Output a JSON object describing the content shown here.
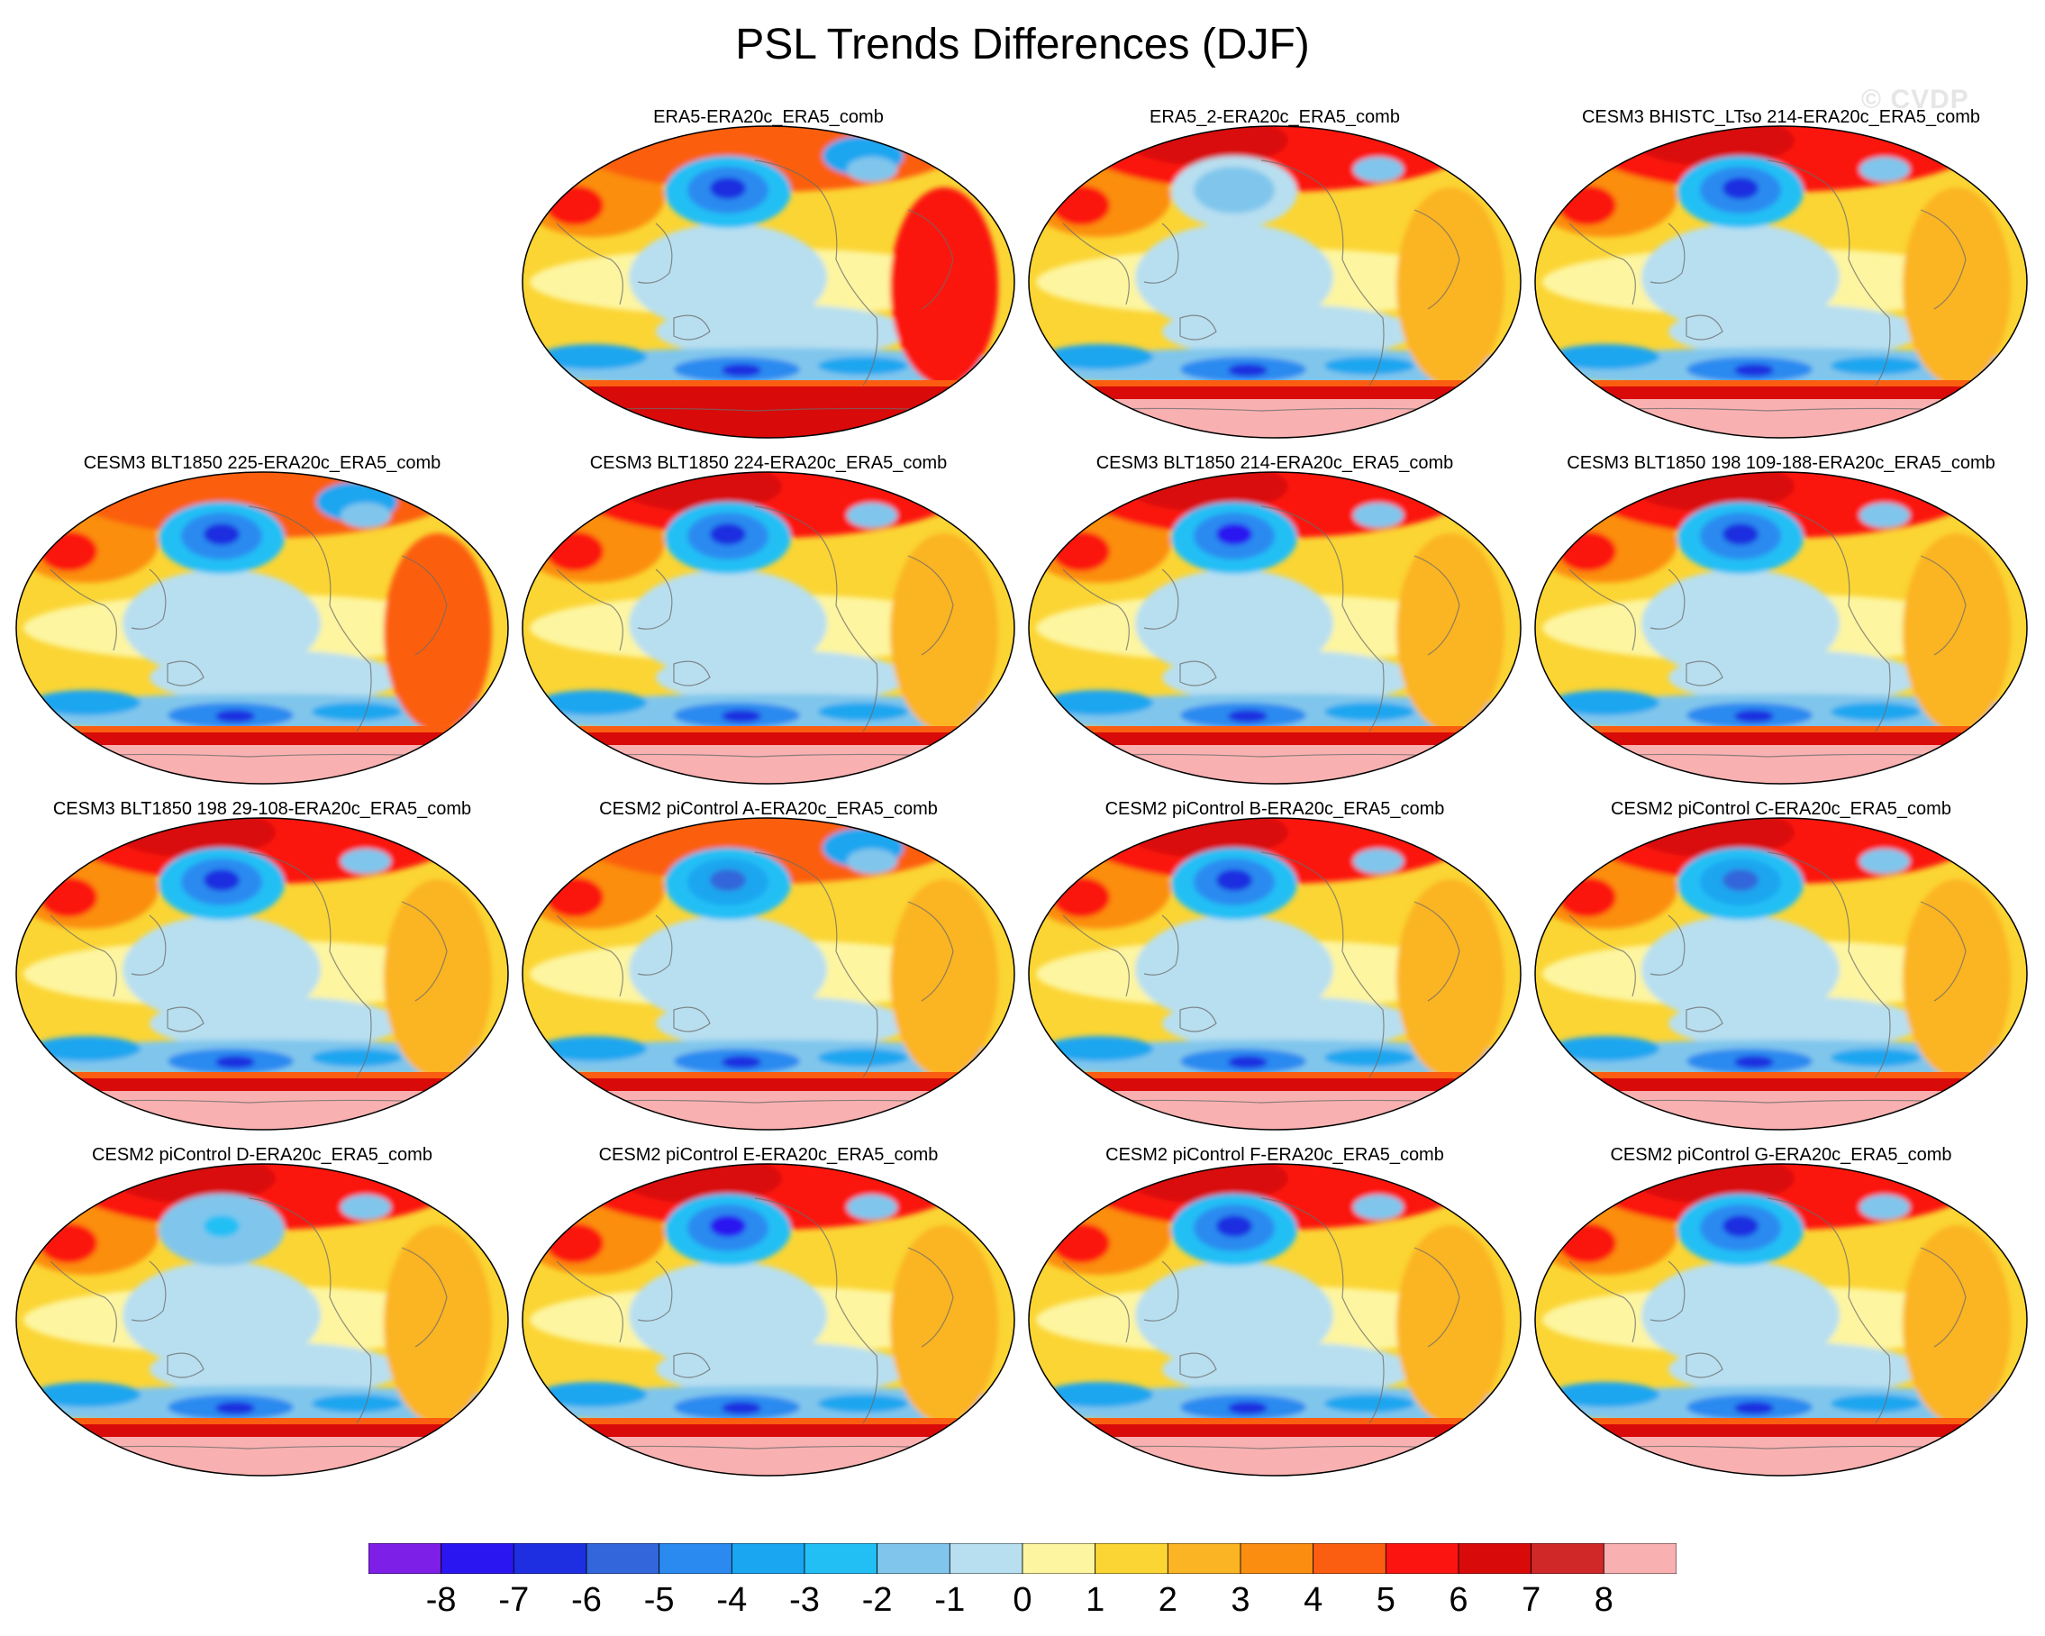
{
  "figure": {
    "title": "PSL Trends Differences (DJF)",
    "watermark": "© CVDP"
  },
  "panels": [
    {
      "title": "ERA5-ERA20c_ERA5_comb",
      "row": 0,
      "col": 1,
      "npole": "mixed",
      "nhlow": -6,
      "spole": "dark",
      "atlantic": 5
    },
    {
      "title": "ERA5_2-ERA20c_ERA5_comb",
      "row": 0,
      "col": 2,
      "npole": "high",
      "nhlow": -1,
      "spole": "pink",
      "atlantic": 2
    },
    {
      "title": "CESM3 BHISTC_LTso 214-ERA20c_ERA5_comb",
      "row": 0,
      "col": 3,
      "npole": "high",
      "nhlow": -6,
      "spole": "pink",
      "atlantic": 2
    },
    {
      "title": "CESM3 BLT1850 225-ERA20c_ERA5_comb",
      "row": 1,
      "col": 0,
      "npole": "mixed",
      "nhlow": -6,
      "spole": "pink",
      "atlantic": 4
    },
    {
      "title": "CESM3 BLT1850 224-ERA20c_ERA5_comb",
      "row": 1,
      "col": 1,
      "npole": "high",
      "nhlow": -6,
      "spole": "pink",
      "atlantic": 2
    },
    {
      "title": "CESM3 BLT1850 214-ERA20c_ERA5_comb",
      "row": 1,
      "col": 2,
      "npole": "high",
      "nhlow": -7,
      "spole": "pink",
      "atlantic": 2
    },
    {
      "title": "CESM3 BLT1850 198 109-188-ERA20c_ERA5_comb",
      "row": 1,
      "col": 3,
      "npole": "high",
      "nhlow": -6,
      "spole": "pink",
      "atlantic": 2
    },
    {
      "title": "CESM3 BLT1850 198 29-108-ERA20c_ERA5_comb",
      "row": 2,
      "col": 0,
      "npole": "high",
      "nhlow": -6,
      "spole": "pink",
      "atlantic": 2
    },
    {
      "title": "CESM2 piControl A-ERA20c_ERA5_comb",
      "row": 2,
      "col": 1,
      "npole": "mixed",
      "nhlow": -5,
      "spole": "pink",
      "atlantic": 2
    },
    {
      "title": "CESM2 piControl B-ERA20c_ERA5_comb",
      "row": 2,
      "col": 2,
      "npole": "high",
      "nhlow": -6,
      "spole": "pink",
      "atlantic": 2
    },
    {
      "title": "CESM2 piControl C-ERA20c_ERA5_comb",
      "row": 2,
      "col": 3,
      "npole": "high",
      "nhlow": -5,
      "spole": "pink",
      "atlantic": 2
    },
    {
      "title": "CESM2 piControl D-ERA20c_ERA5_comb",
      "row": 3,
      "col": 0,
      "npole": "high",
      "nhlow": -2,
      "spole": "pink",
      "atlantic": 2
    },
    {
      "title": "CESM2 piControl E-ERA20c_ERA5_comb",
      "row": 3,
      "col": 1,
      "npole": "high",
      "nhlow": -7,
      "spole": "pink",
      "atlantic": 2
    },
    {
      "title": "CESM2 piControl F-ERA20c_ERA5_comb",
      "row": 3,
      "col": 2,
      "npole": "high",
      "nhlow": -6,
      "spole": "pink",
      "atlantic": 2
    },
    {
      "title": "CESM2 piControl G-ERA20c_ERA5_comb",
      "row": 3,
      "col": 3,
      "npole": "high",
      "nhlow": -6,
      "spole": "pink",
      "atlantic": 2
    }
  ],
  "colorbar": {
    "colors": [
      "#7d1fe6",
      "#2a16f0",
      "#1d2fe0",
      "#3266da",
      "#2a8af0",
      "#1aa6f0",
      "#22bff5",
      "#80c6ec",
      "#b8dff0",
      "#fdf5a0",
      "#fbd534",
      "#fbb424",
      "#fb8e10",
      "#fb5e10",
      "#fb1410",
      "#d90a0a",
      "#d02828",
      "#f9b0b0"
    ],
    "labels": [
      "-8",
      "-7",
      "-6",
      "-5",
      "-4",
      "-3",
      "-2",
      "-1",
      "0",
      "1",
      "2",
      "3",
      "4",
      "5",
      "6",
      "7",
      "8"
    ]
  }
}
